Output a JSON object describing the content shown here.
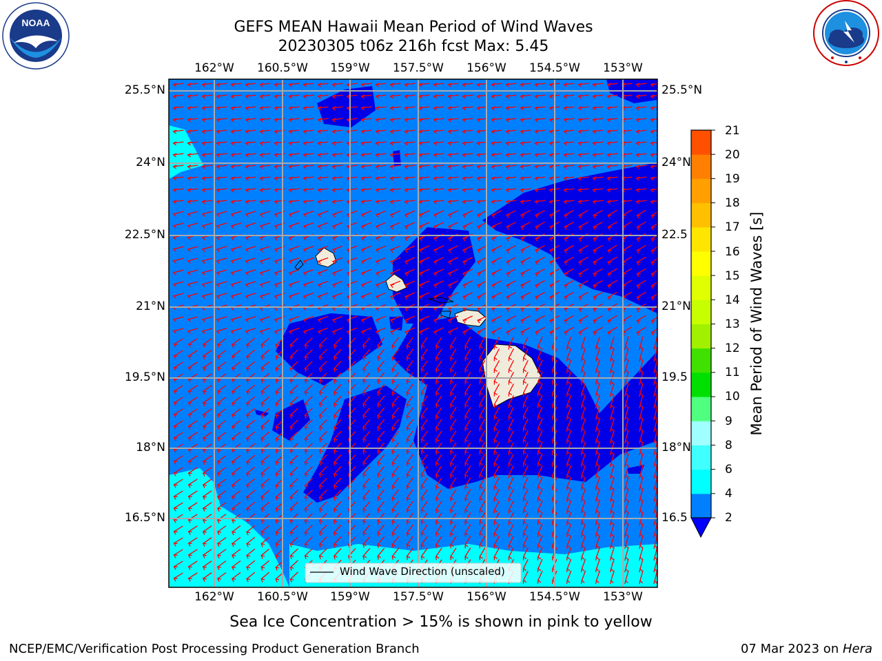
{
  "header": {
    "title_line1": "GEFS MEAN Hawaii Mean Period of Wind Waves",
    "title_line2": "20230305 t06z 216h fcst   Max: 5.45"
  },
  "logos": {
    "left": {
      "name": "noaa-logo",
      "text": "NOAA",
      "ring_text": "NATIONAL OCEANIC AND ATMOSPHERIC ADMINISTRATION · U.S. DEPARTMENT OF COMMERCE"
    },
    "right": {
      "name": "nws-logo",
      "ring_text": "NATIONAL WEATHER SERVICE"
    }
  },
  "map": {
    "lon_labels": [
      "162°W",
      "160.5°W",
      "159°W",
      "157.5°W",
      "156°W",
      "154.5°W",
      "153°W"
    ],
    "lat_labels": [
      "25.5°N",
      "24°N",
      "22.5°N",
      "21°N",
      "19.5°N",
      "18°N",
      "16.5°N"
    ],
    "lat_labels_right": [
      "25.5°N",
      "24°N",
      "22.5",
      "21°N",
      "19.5",
      "18°N",
      "16.5"
    ],
    "legend_label": "Wind Wave Direction (unscaled)",
    "colors": {
      "level_2_4": "#0080ff",
      "level_below_2": "#0000e6",
      "level_4_6": "#00ffff",
      "land": "#f0ecdc",
      "arrows": "#ff0000",
      "grid": "#aaaaaa"
    }
  },
  "colorbar": {
    "label": "Mean Period of Wind Waves [s]",
    "ticks": [
      "21",
      "20",
      "19",
      "18",
      "17",
      "16",
      "15",
      "14",
      "13",
      "12",
      "11",
      "10",
      "9",
      "8",
      "6",
      "4",
      "2"
    ],
    "colors_bottom_to_top": [
      "#0080ff",
      "#00ffff",
      "#40ffff",
      "#a0ffff",
      "#50ff80",
      "#00e000",
      "#40e000",
      "#a0f000",
      "#c8ff00",
      "#e0ff00",
      "#ffff00",
      "#ffe600",
      "#ffc000",
      "#ffa000",
      "#ff8000",
      "#ff5000",
      "#ff2000",
      "#ff0000"
    ],
    "under_color": "#0000ff"
  },
  "footer": {
    "sea_ice_note": "Sea Ice Concentration > 15% is shown in pink to yellow",
    "branch": "NCEP/EMC/Verification Post Processing Product Generation Branch",
    "date_prefix": "07 Mar 2023 on ",
    "host": "Hera"
  }
}
